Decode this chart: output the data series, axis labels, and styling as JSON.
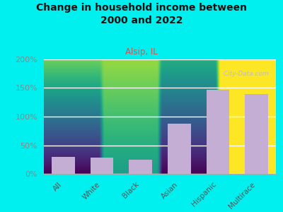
{
  "title": "Change in household income between\n2000 and 2022",
  "subtitle": "Alsip, IL",
  "categories": [
    "All",
    "White",
    "Black",
    "Asian",
    "Hispanic",
    "Multirace"
  ],
  "values": [
    30,
    29,
    25,
    88,
    147,
    140
  ],
  "bar_color": "#c4aed4",
  "background_outer": "#00f0f0",
  "background_plot_top": "#f5f5ee",
  "background_plot_bottom": "#d8edd8",
  "ylabel_color": "#888888",
  "subtitle_color": "#cc5555",
  "title_color": "#111111",
  "watermark": "  City-Data.com",
  "ylim": [
    0,
    200
  ],
  "yticks": [
    0,
    50,
    100,
    150,
    200
  ],
  "ytick_labels": [
    "0%",
    "50%",
    "100%",
    "150%",
    "200%"
  ],
  "tick_label_color": "#888888",
  "xticklabel_color": "#555555"
}
